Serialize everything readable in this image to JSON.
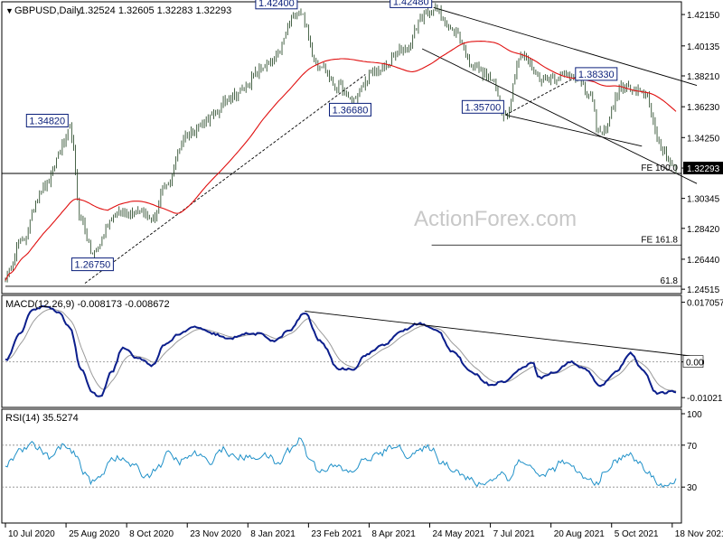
{
  "chart_data": {
    "type": "candlestick",
    "symbol_label": "GBPUSD,Daily",
    "ohlc_label": "1.32524 1.32605 1.32283 1.32293",
    "watermark": "ActionForex.com",
    "price_axis": {
      "ylim": [
        1.2435,
        1.4285
      ],
      "ticks": [
        "1.42150",
        "1.40135",
        "1.38210",
        "1.36230",
        "1.34250",
        "1.32293",
        "1.30345",
        "1.28420",
        "1.26440",
        "1.24515"
      ],
      "tick_values": [
        1.4215,
        1.40135,
        1.3821,
        1.3623,
        1.3425,
        1.32293,
        1.30345,
        1.2842,
        1.2644,
        1.24515
      ],
      "current_price_index": 5
    },
    "x_axis": {
      "count": 355,
      "dates": [
        "10 Jul 2020",
        "25 Aug 2020",
        "8 Oct 2020",
        "23 Nov 2020",
        "8 Jan 2021",
        "23 Feb 2021",
        "8 Apr 2021",
        "24 May 2021",
        "7 Jul 2021",
        "20 Aug 2021",
        "5 Oct 2021",
        "18 Nov 2021"
      ],
      "date_index": [
        0,
        32,
        64,
        96,
        128,
        160,
        192,
        224,
        256,
        288,
        320,
        352
      ]
    },
    "price_anchors": [
      [
        0,
        1.253
      ],
      [
        8,
        1.275
      ],
      [
        20,
        1.31
      ],
      [
        32,
        1.34
      ],
      [
        34,
        1.3482
      ],
      [
        40,
        1.29
      ],
      [
        46,
        1.2675
      ],
      [
        58,
        1.293
      ],
      [
        70,
        1.296
      ],
      [
        78,
        1.29
      ],
      [
        84,
        1.31
      ],
      [
        96,
        1.345
      ],
      [
        108,
        1.355
      ],
      [
        120,
        1.37
      ],
      [
        140,
        1.39
      ],
      [
        155,
        1.424
      ],
      [
        165,
        1.39
      ],
      [
        176,
        1.375
      ],
      [
        182,
        1.3668
      ],
      [
        196,
        1.385
      ],
      [
        212,
        1.4
      ],
      [
        220,
        1.42
      ],
      [
        226,
        1.4248
      ],
      [
        238,
        1.41
      ],
      [
        246,
        1.39
      ],
      [
        256,
        1.38
      ],
      [
        264,
        1.357
      ],
      [
        272,
        1.395
      ],
      [
        284,
        1.38
      ],
      [
        300,
        1.3833
      ],
      [
        308,
        1.37
      ],
      [
        314,
        1.345
      ],
      [
        326,
        1.375
      ],
      [
        338,
        1.37
      ],
      [
        346,
        1.335
      ],
      [
        354,
        1.3229
      ]
    ],
    "fixed_swing_points": [
      [
        34,
        1.3482
      ],
      [
        46,
        1.2675
      ],
      [
        155,
        1.424
      ],
      [
        182,
        1.3668
      ],
      [
        226,
        1.4248
      ],
      [
        264,
        1.357
      ],
      [
        300,
        1.3833
      ]
    ],
    "sma_period": 55,
    "swing_labels": [
      {
        "text": "1.34820",
        "index": 34,
        "price": 1.3482,
        "position": "left-above"
      },
      {
        "text": "1.26750",
        "index": 46,
        "price": 1.2675,
        "position": "below"
      },
      {
        "text": "1.42400",
        "index": 155,
        "price": 1.424,
        "position": "left-above"
      },
      {
        "text": "1.36680",
        "index": 182,
        "price": 1.3668,
        "position": "below"
      },
      {
        "text": "1.42480",
        "index": 226,
        "price": 1.4248,
        "position": "left-above"
      },
      {
        "text": "1.35700",
        "index": 264,
        "price": 1.357,
        "position": "left-above"
      },
      {
        "text": "1.38330",
        "index": 300,
        "price": 1.3833,
        "position": "right"
      }
    ],
    "fib_levels": [
      {
        "label": "FE 100.0",
        "price": 1.3195,
        "start_index": 225
      },
      {
        "label": "FE 161.8",
        "price": 1.2735,
        "start_index": 225
      },
      {
        "label": "61.8",
        "price": 1.247,
        "start_index": 0
      }
    ],
    "horizontal_lines": [
      {
        "price": 1.3195
      }
    ],
    "trendlines": [
      {
        "name": "channel-upper",
        "from": [
          226,
          1.426
        ],
        "to": [
          365,
          1.376
        ]
      },
      {
        "name": "channel-lower",
        "from": [
          220,
          1.3995
        ],
        "to": [
          365,
          1.313
        ]
      },
      {
        "name": "inner-channel",
        "from": [
          264,
          1.357
        ],
        "to": [
          336,
          1.337
        ]
      },
      {
        "name": "rising-support",
        "from": [
          42,
          1.249
        ],
        "to": [
          190,
          1.383
        ]
      },
      {
        "name": "neckline",
        "from": [
          264,
          1.357
        ],
        "to": [
          306,
          1.3845
        ]
      }
    ],
    "macd": {
      "title": "MACD(12,26,9) -0.008173 -0.008672",
      "ylim": [
        -0.0125,
        0.0185
      ],
      "ticks": [
        "0.017057",
        "0.00",
        "-0.010219"
      ],
      "tick_values": [
        0.017057,
        0.0,
        -0.010219
      ],
      "zero_tag": "0.00",
      "macd_anchors": [
        [
          0,
          0.0005
        ],
        [
          8,
          0.008
        ],
        [
          14,
          0.015
        ],
        [
          22,
          0.016
        ],
        [
          28,
          0.014
        ],
        [
          34,
          0.01
        ],
        [
          40,
          -0.002
        ],
        [
          46,
          -0.009
        ],
        [
          50,
          -0.01
        ],
        [
          56,
          -0.003
        ],
        [
          62,
          0.004
        ],
        [
          70,
          0.001
        ],
        [
          78,
          -0.001
        ],
        [
          84,
          0.005
        ],
        [
          92,
          0.008
        ],
        [
          100,
          0.01
        ],
        [
          110,
          0.008
        ],
        [
          118,
          0.0065
        ],
        [
          126,
          0.008
        ],
        [
          134,
          0.008
        ],
        [
          142,
          0.006
        ],
        [
          150,
          0.009
        ],
        [
          158,
          0.014
        ],
        [
          166,
          0.006
        ],
        [
          176,
          -0.002
        ],
        [
          184,
          -0.002
        ],
        [
          190,
          0.002
        ],
        [
          200,
          0.005
        ],
        [
          210,
          0.009
        ],
        [
          218,
          0.011
        ],
        [
          228,
          0.009
        ],
        [
          236,
          0.003
        ],
        [
          246,
          -0.003
        ],
        [
          256,
          -0.0065
        ],
        [
          264,
          -0.0055
        ],
        [
          272,
          -0.002
        ],
        [
          278,
          0.0
        ],
        [
          282,
          -0.0045
        ],
        [
          290,
          -0.003
        ],
        [
          298,
          0.0
        ],
        [
          306,
          -0.002
        ],
        [
          314,
          -0.007
        ],
        [
          322,
          -0.003
        ],
        [
          330,
          0.0025
        ],
        [
          336,
          -0.002
        ],
        [
          344,
          -0.009
        ],
        [
          354,
          -0.0085
        ]
      ],
      "trendline": {
        "from": [
          158,
          0.0145
        ],
        "to": [
          365,
          0.0015
        ]
      },
      "signal_period": 9
    },
    "rsi": {
      "title": "RSI(14) 35.5274",
      "ylim": [
        0,
        100
      ],
      "ticks": [
        "100",
        "70",
        "30"
      ],
      "tick_values": [
        100,
        70,
        30
      ],
      "levels": [
        70,
        30
      ],
      "rsi_anchors": [
        [
          0,
          50
        ],
        [
          8,
          66
        ],
        [
          14,
          72
        ],
        [
          18,
          66
        ],
        [
          24,
          58
        ],
        [
          30,
          70
        ],
        [
          36,
          62
        ],
        [
          42,
          44
        ],
        [
          46,
          34
        ],
        [
          50,
          40
        ],
        [
          56,
          58
        ],
        [
          62,
          56
        ],
        [
          68,
          50
        ],
        [
          74,
          40
        ],
        [
          80,
          48
        ],
        [
          86,
          62
        ],
        [
          92,
          54
        ],
        [
          100,
          62
        ],
        [
          108,
          54
        ],
        [
          114,
          66
        ],
        [
          122,
          58
        ],
        [
          130,
          58
        ],
        [
          138,
          60
        ],
        [
          144,
          52
        ],
        [
          150,
          66
        ],
        [
          156,
          76
        ],
        [
          160,
          58
        ],
        [
          166,
          46
        ],
        [
          174,
          50
        ],
        [
          182,
          44
        ],
        [
          190,
          56
        ],
        [
          198,
          62
        ],
        [
          206,
          70
        ],
        [
          212,
          60
        ],
        [
          218,
          64
        ],
        [
          224,
          68
        ],
        [
          230,
          54
        ],
        [
          238,
          46
        ],
        [
          244,
          38
        ],
        [
          250,
          32
        ],
        [
          256,
          36
        ],
        [
          262,
          44
        ],
        [
          266,
          36
        ],
        [
          270,
          54
        ],
        [
          276,
          52
        ],
        [
          282,
          40
        ],
        [
          288,
          46
        ],
        [
          294,
          54
        ],
        [
          300,
          48
        ],
        [
          306,
          38
        ],
        [
          312,
          34
        ],
        [
          316,
          42
        ],
        [
          322,
          54
        ],
        [
          328,
          62
        ],
        [
          334,
          54
        ],
        [
          340,
          42
        ],
        [
          346,
          32
        ],
        [
          352,
          31
        ],
        [
          355,
          38
        ]
      ]
    }
  }
}
